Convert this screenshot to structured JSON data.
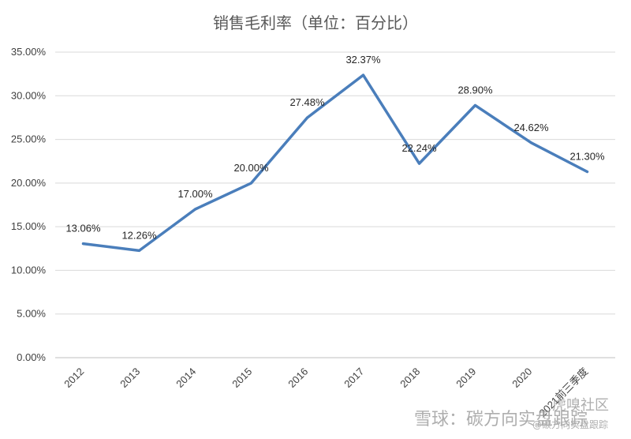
{
  "chart_data": {
    "type": "line",
    "title": "销售毛利率（单位：百分比）",
    "categories": [
      "2012",
      "2013",
      "2014",
      "2015",
      "2016",
      "2017",
      "2018",
      "2019",
      "2020",
      "2021前三季度"
    ],
    "series": [
      {
        "values": [
          13.06,
          12.26,
          17.0,
          20.0,
          27.48,
          32.37,
          22.24,
          28.9,
          24.62,
          21.3
        ],
        "labels": [
          "13.06%",
          "12.26%",
          "17.00%",
          "20.00%",
          "27.48%",
          "32.37%",
          "22.24%",
          "28.90%",
          "24.62%",
          "21.30%"
        ],
        "color": "#4a7ebb"
      }
    ],
    "ylim": [
      0,
      35
    ],
    "yticks": [
      0,
      5,
      10,
      15,
      20,
      25,
      30,
      35
    ],
    "ytick_labels": [
      "0.00%",
      "5.00%",
      "10.00%",
      "15.00%",
      "20.00%",
      "25.00%",
      "30.00%",
      "35.00%"
    ],
    "xlabel": "",
    "ylabel": "",
    "grid": true,
    "legend": "none"
  },
  "watermarks": {
    "xueqiu": "雪球：碳方向实盘跟踪",
    "huxiu": "虎嗅社区",
    "huxiu_sub": "@碳方向实盘跟踪"
  }
}
